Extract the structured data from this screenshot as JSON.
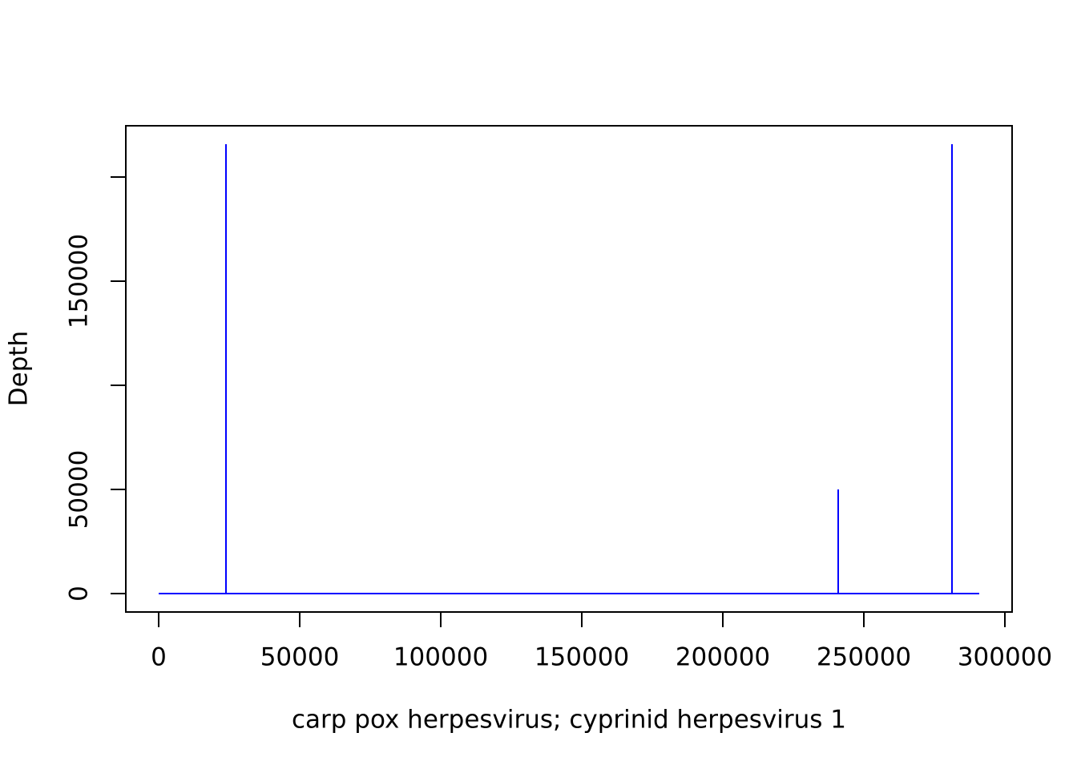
{
  "chart_data": {
    "type": "line",
    "x_label": "carp pox herpesvirus; cyprinid herpesvirus 1",
    "y_label": "Depth",
    "series": [
      {
        "color": "#0000ff",
        "x": [
          0,
          23864,
          23864,
          23864,
          240909,
          240909,
          240909,
          281250,
          281250,
          281250,
          290909
        ],
        "values": [
          0,
          0,
          215769,
          0,
          0,
          50000,
          0,
          0,
          215769,
          0,
          0
        ]
      }
    ],
    "xlim": [
      -11648,
      302557
    ],
    "ylim": [
      -8846,
      224615
    ],
    "xticks": [
      0,
      50000,
      100000,
      150000,
      200000,
      250000,
      300000
    ],
    "yticks": [
      0,
      50000,
      150000
    ],
    "yticks_unlabeled": [
      100000,
      200000
    ]
  }
}
